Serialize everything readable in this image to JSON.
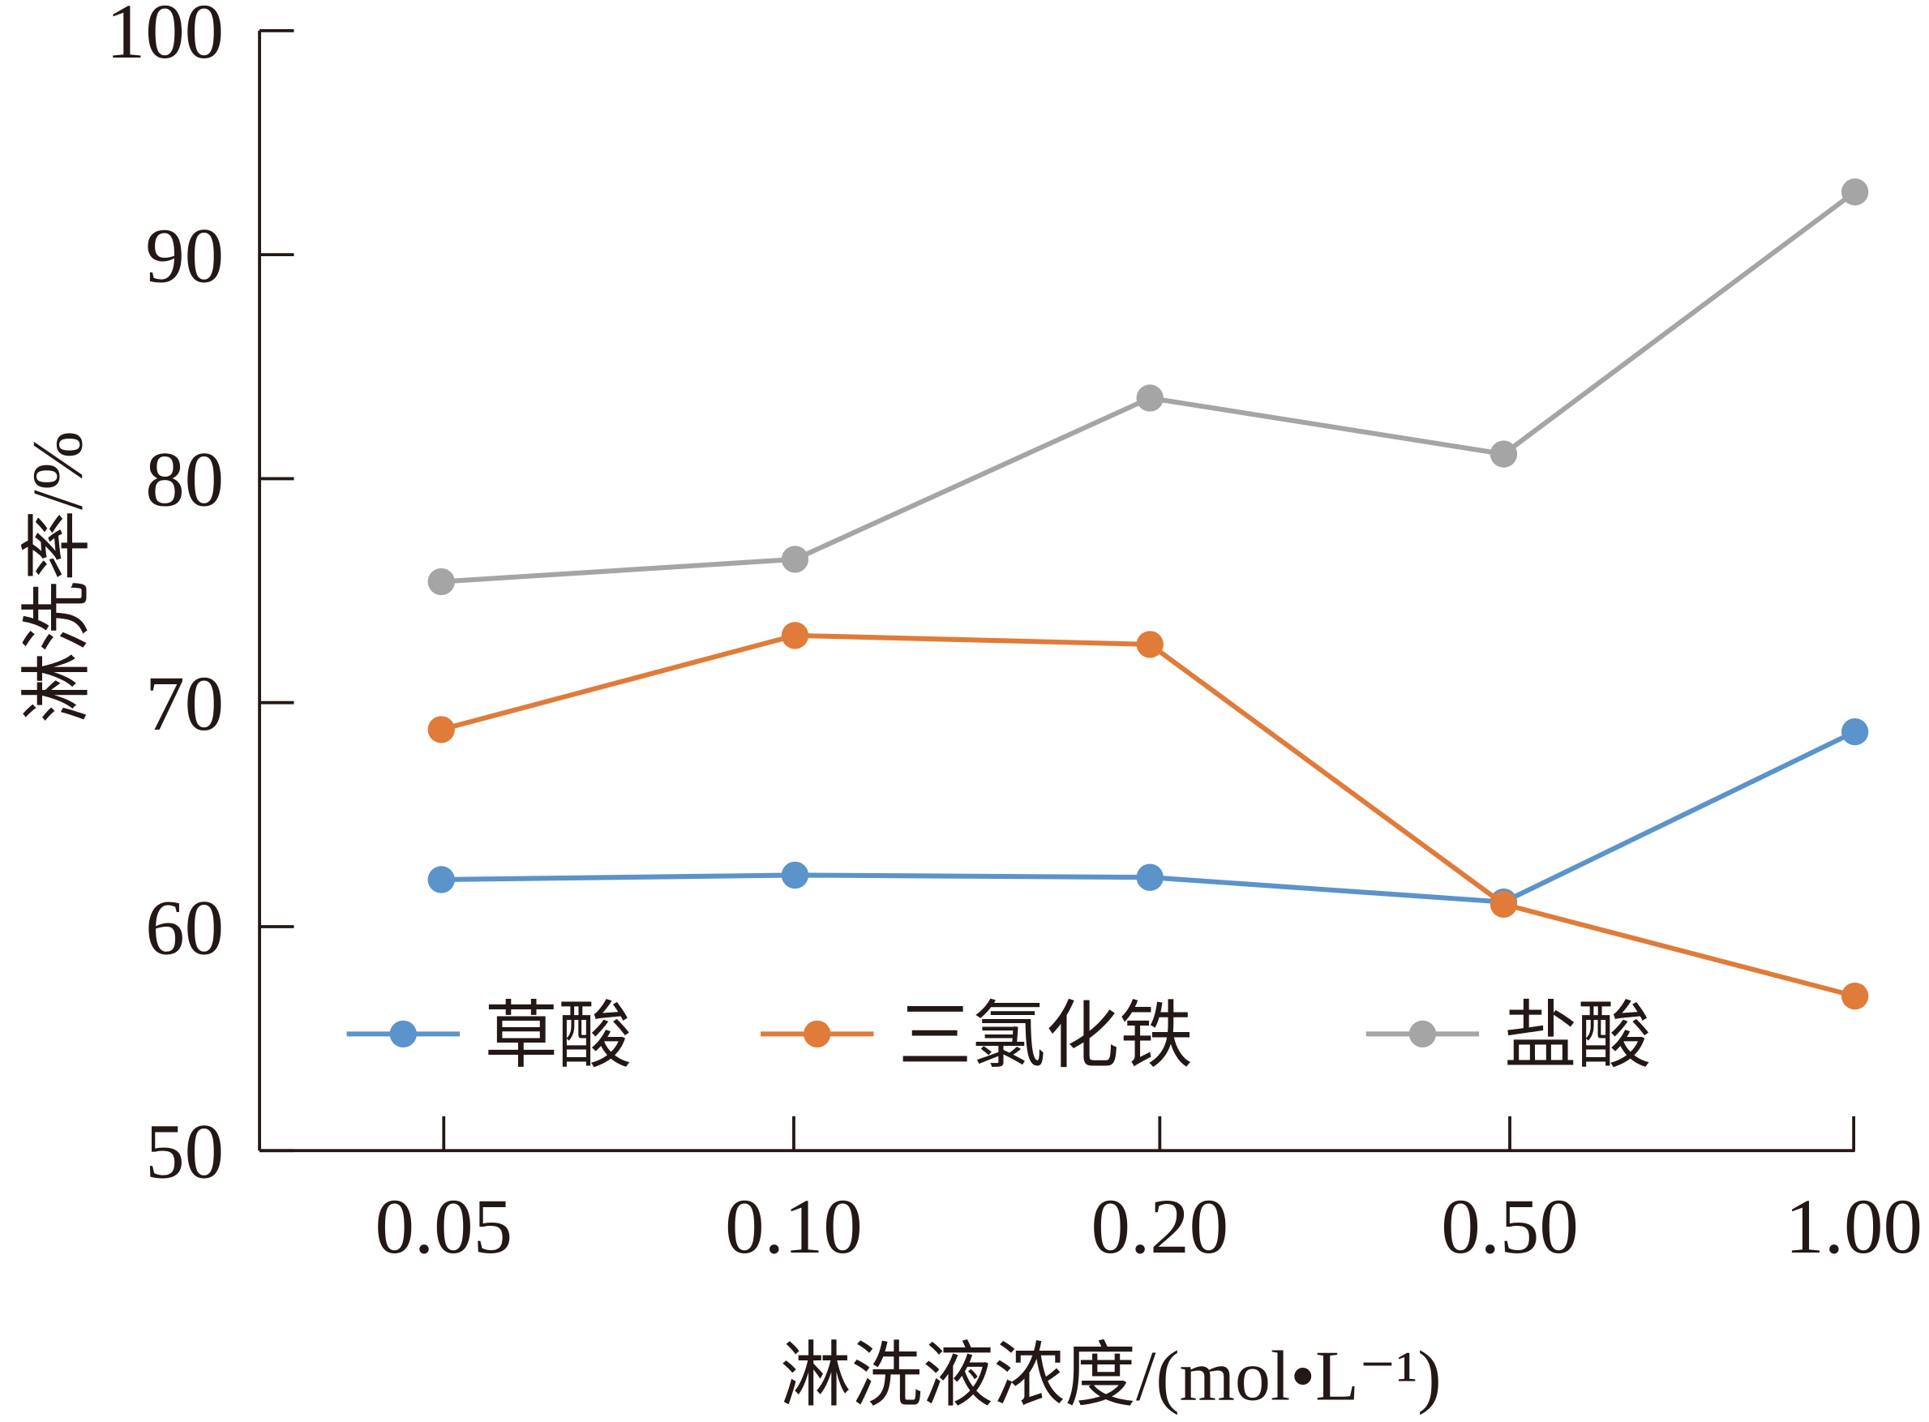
{
  "chart_data": {
    "type": "line",
    "title": "",
    "xlabel": "淋洗液浓度/(mol•L⁻¹)",
    "ylabel": "淋洗率/%",
    "categories": [
      "0.05",
      "0.10",
      "0.20",
      "0.50",
      "1.00"
    ],
    "ylim": [
      50,
      100
    ],
    "yticks": [
      "50",
      "60",
      "70",
      "80",
      "90",
      "100"
    ],
    "grid": false,
    "legend_position": "bottom-inside",
    "series": [
      {
        "name": "草酸",
        "color": "#5b93cb",
        "values": [
          62.1,
          62.3,
          62.2,
          61.1,
          68.7
        ]
      },
      {
        "name": "三氯化铁",
        "color": "#e07b39",
        "values": [
          68.8,
          73.0,
          72.6,
          61.0,
          56.9
        ]
      },
      {
        "name": "盐酸",
        "color": "#a5a5a5",
        "values": [
          75.4,
          76.4,
          83.6,
          81.1,
          92.8
        ]
      }
    ]
  }
}
